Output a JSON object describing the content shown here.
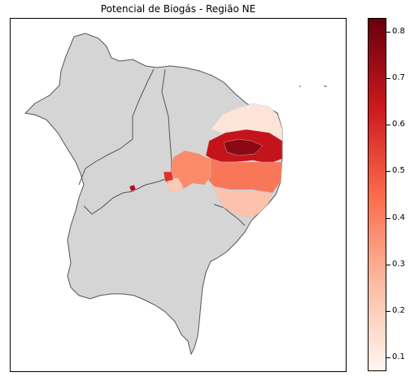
{
  "title": "Potencial de Biogás - Região NE",
  "colors": {
    "base_fill": "#d5d5d5",
    "base_border": "#555555",
    "ramp": [
      "#fff5f0",
      "#fcbba1",
      "#fb6a4a",
      "#cb181d",
      "#67000d"
    ]
  },
  "colorbar": {
    "min": 0.07,
    "max": 0.83,
    "ticks": [
      "0.1",
      "0.2",
      "0.3",
      "0.4",
      "0.5",
      "0.6",
      "0.7",
      "0.8"
    ]
  }
}
